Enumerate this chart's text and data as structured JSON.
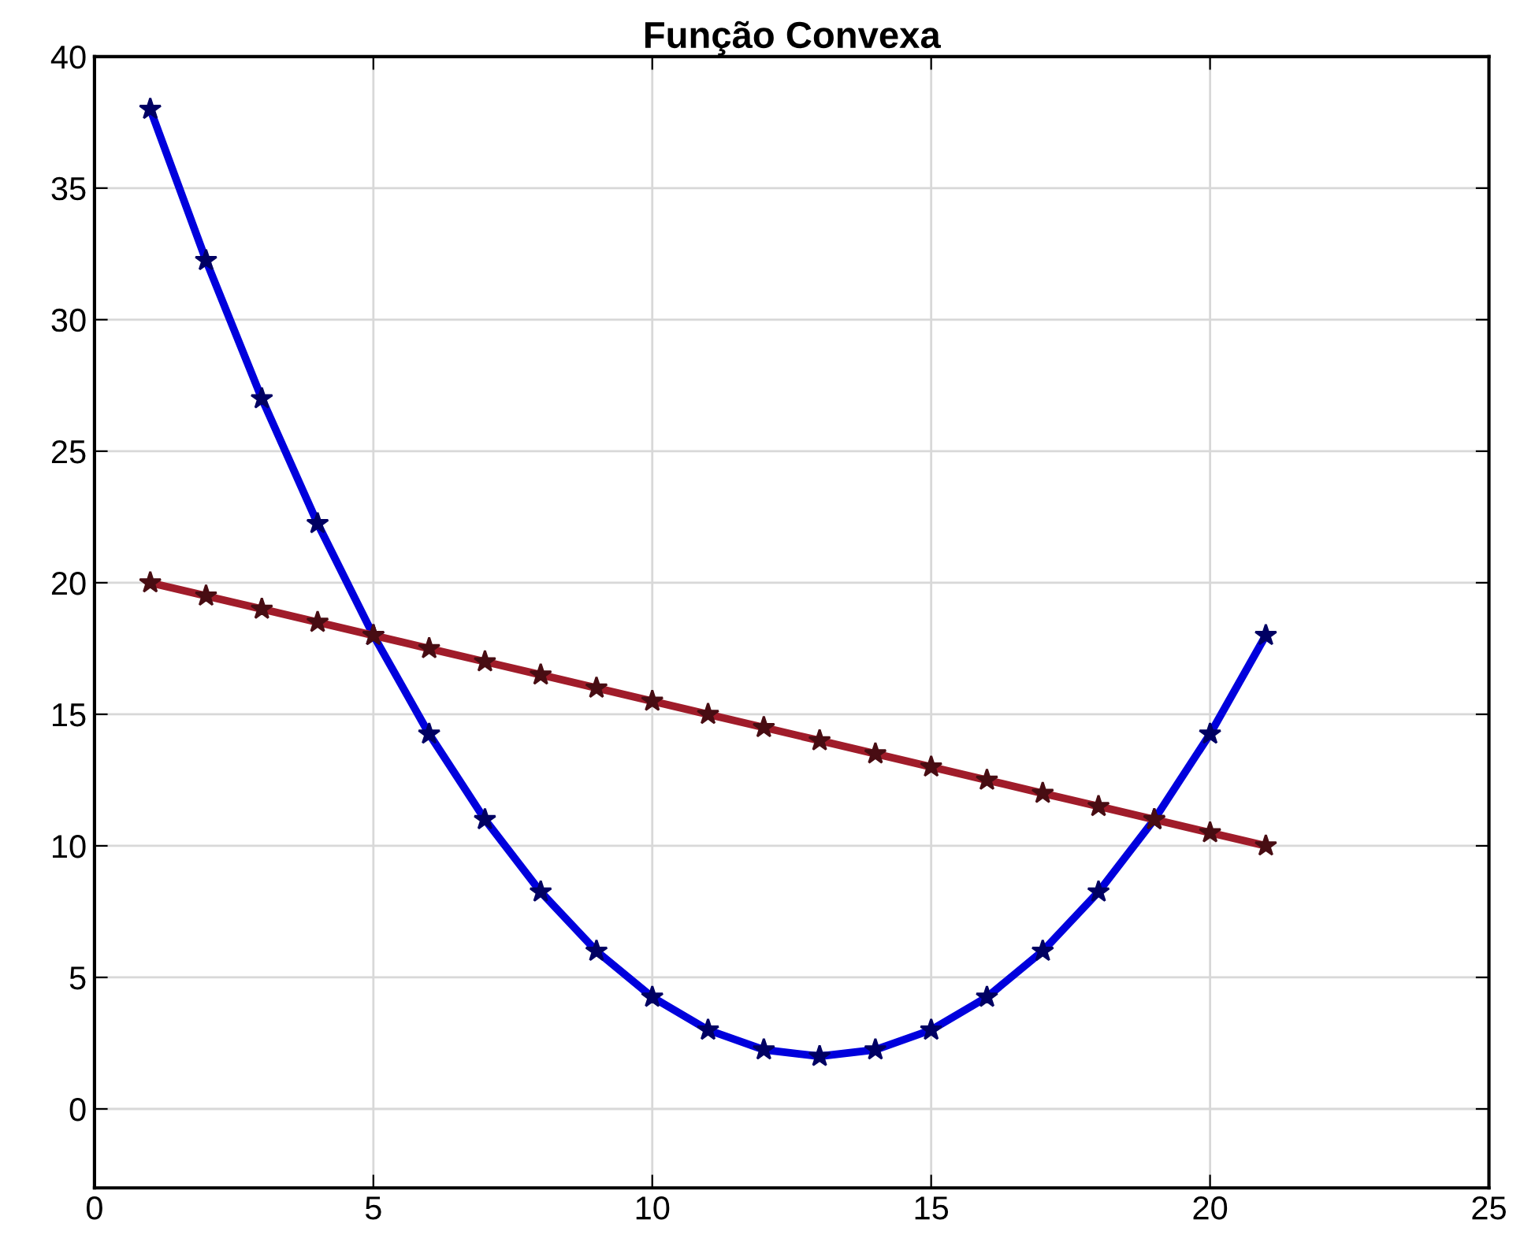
{
  "chart_data": {
    "type": "line",
    "title": "Função Convexa",
    "x": [
      1,
      2,
      3,
      4,
      5,
      6,
      7,
      8,
      9,
      10,
      11,
      12,
      13,
      14,
      15,
      16,
      17,
      18,
      19,
      20,
      21
    ],
    "series": [
      {
        "color": "#0000dd",
        "values": [
          38,
          32.25,
          27,
          22.25,
          18,
          14.25,
          11,
          8.25,
          6,
          4.25,
          3,
          2.25,
          2,
          2.25,
          3,
          4.25,
          6,
          8.25,
          11,
          14.25,
          18
        ]
      },
      {
        "color": "#a01c2a",
        "values": [
          20,
          19.5,
          19,
          18.5,
          18,
          17.5,
          17,
          16.5,
          16,
          15.5,
          15,
          14.5,
          14,
          13.5,
          13,
          12.5,
          12,
          11.5,
          11,
          10.5,
          10
        ]
      }
    ],
    "xlim": [
      0,
      25
    ],
    "xticks": [
      0,
      5,
      10,
      15,
      20,
      25
    ],
    "ylim": [
      -3,
      40
    ],
    "yticks": [
      0,
      5,
      10,
      15,
      20,
      25,
      30,
      35,
      40
    ],
    "grid": true,
    "marker": "star",
    "line_style": "solid"
  }
}
